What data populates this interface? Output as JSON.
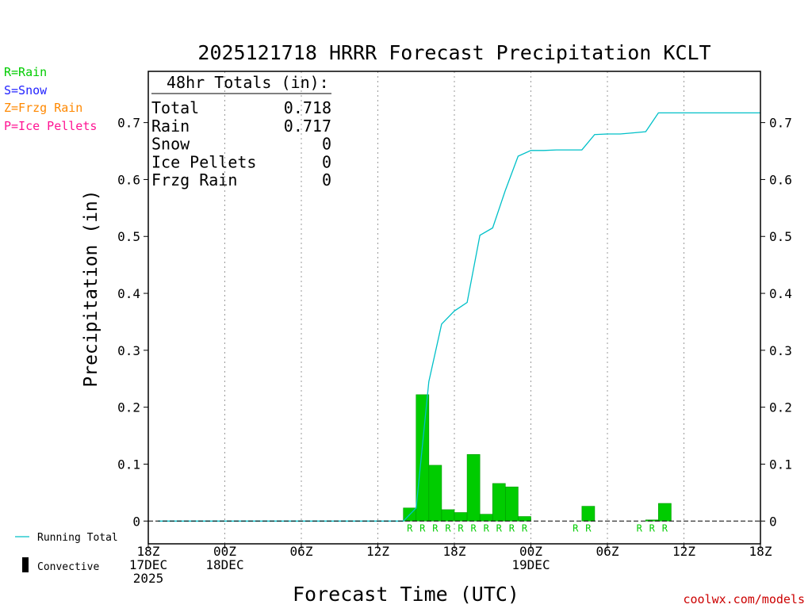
{
  "colors": {
    "rain": "#00cc00",
    "snow": "#2222ff",
    "frzg_rain": "#ff8800",
    "ice_pellets": "#ff1493",
    "running_total": "#00c0c8",
    "axis": "#000000",
    "credit": "#cc0000"
  },
  "legend_left": {
    "rain": "R=Rain",
    "snow": "S=Snow",
    "frzg_rain": "Z=Frzg Rain",
    "ice_pellets": "P=Ice Pellets"
  },
  "legend_bottom": {
    "running_total": "Running Total",
    "convective": "Convective"
  },
  "totals_box": {
    "header": "48hr Totals (in):",
    "rows": [
      {
        "label": "Total",
        "value": "0.718"
      },
      {
        "label": "Rain",
        "value": "0.717"
      },
      {
        "label": "Snow",
        "value": "0"
      },
      {
        "label": "Ice Pellets",
        "value": "0"
      },
      {
        "label": "Frzg Rain",
        "value": "0"
      }
    ]
  },
  "credit": "coolwx.com/models",
  "chart_data": {
    "type": "bar",
    "title": "2025121718 HRRR Forecast Precipitation KCLT",
    "xlabel": "Forecast Time (UTC)",
    "ylabel": "Precipitation (in)",
    "ylim": [
      -0.04,
      0.79
    ],
    "xlim_hours": [
      0,
      48
    ],
    "yticks": [
      0,
      0.1,
      0.2,
      0.3,
      0.4,
      0.5,
      0.6,
      0.7
    ],
    "ytick_labels": [
      "0",
      "0.1",
      "0.2",
      "0.3",
      "0.4",
      "0.5",
      "0.6",
      "0.7"
    ],
    "xticks": [
      {
        "hour": 0,
        "lines": [
          "18Z",
          "17DEC",
          "2025"
        ]
      },
      {
        "hour": 6,
        "lines": [
          "00Z",
          "18DEC"
        ]
      },
      {
        "hour": 12,
        "lines": [
          "06Z"
        ]
      },
      {
        "hour": 18,
        "lines": [
          "12Z"
        ]
      },
      {
        "hour": 24,
        "lines": [
          "18Z"
        ]
      },
      {
        "hour": 30,
        "lines": [
          "00Z",
          "19DEC"
        ]
      },
      {
        "hour": 36,
        "lines": [
          "06Z"
        ]
      },
      {
        "hour": 42,
        "lines": [
          "12Z"
        ]
      },
      {
        "hour": 48,
        "lines": [
          "18Z"
        ]
      }
    ],
    "hourly_precip": {
      "name": "Hourly Precipitation",
      "hours": [
        21,
        22,
        23,
        24,
        25,
        26,
        27,
        28,
        29,
        30,
        34,
        35,
        39,
        40,
        41
      ],
      "values": [
        0.023,
        0.222,
        0.098,
        0.02,
        0.015,
        0.117,
        0.012,
        0.066,
        0.06,
        0.008,
        0.0,
        0.026,
        0.0,
        0.002,
        0.031
      ],
      "ptype": [
        "R",
        "R",
        "R",
        "R",
        "R",
        "R",
        "R",
        "R",
        "R",
        "R",
        "R",
        "R",
        "R",
        "R",
        "R"
      ]
    },
    "running_total": {
      "name": "Running Total",
      "hours": [
        0.75,
        20,
        21,
        22,
        23,
        24,
        25,
        26,
        27,
        28,
        29,
        30,
        31,
        32,
        33,
        34,
        35,
        36,
        37,
        38,
        39,
        40,
        48
      ],
      "values": [
        0,
        0,
        0.023,
        0.245,
        0.346,
        0.369,
        0.384,
        0.502,
        0.515,
        0.581,
        0.641,
        0.651,
        0.651,
        0.652,
        0.652,
        0.652,
        0.679,
        0.68,
        0.68,
        0.682,
        0.684,
        0.717,
        0.717
      ]
    }
  }
}
